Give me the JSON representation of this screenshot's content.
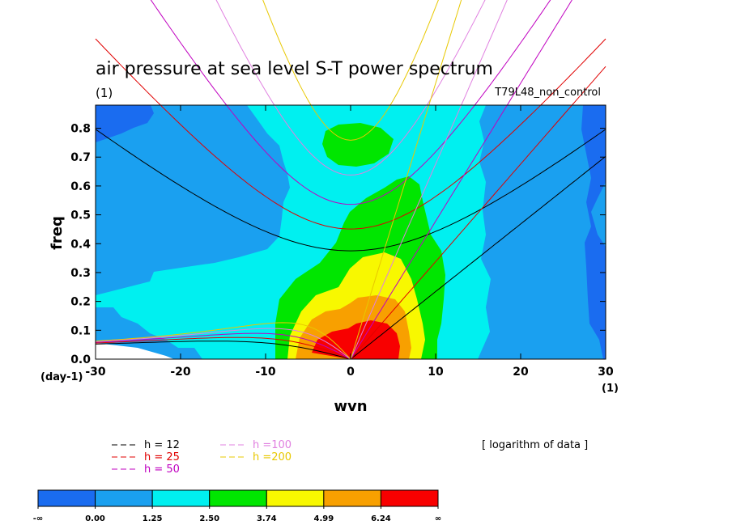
{
  "chart_data": {
    "type": "heatmap",
    "title": "air pressure at sea level S-T power spectrum",
    "units_left": "(1)",
    "run_label": "T79L48_non_control",
    "xlabel": "wvn",
    "ylabel": "freq",
    "x_unit_label": "(1)",
    "y_unit_label": "(day-1)",
    "xlim": [
      -30,
      30
    ],
    "ylim": [
      0,
      0.88
    ],
    "xticks": [
      "-30",
      "-20",
      "-10",
      "0",
      "10",
      "20",
      "30"
    ],
    "yticks": [
      "0.0",
      "0.1",
      "0.2",
      "0.3",
      "0.4",
      "0.5",
      "0.6",
      "0.7",
      "0.8"
    ],
    "note": "[ logarithm of data ]",
    "color_levels": [
      "-∞",
      "0.00",
      "1.25",
      "2.50",
      "3.74",
      "4.99",
      "6.24",
      "∞"
    ],
    "colors": [
      "#1a6cf0",
      "#1aa0f0",
      "#00f0f0",
      "#00e600",
      "#f8f800",
      "#f8a000",
      "#f80000"
    ],
    "dispersion_curves": [
      {
        "label": "h = 12",
        "color": "#000000",
        "h": 12
      },
      {
        "label": "h = 25",
        "color": "#e00000",
        "h": 25
      },
      {
        "label": "h = 50",
        "color": "#c000c0",
        "h": 50
      },
      {
        "label": "h =100",
        "color": "#e080e0",
        "h": 100
      },
      {
        "label": "h =200",
        "color": "#e8c800",
        "h": 200
      }
    ]
  }
}
